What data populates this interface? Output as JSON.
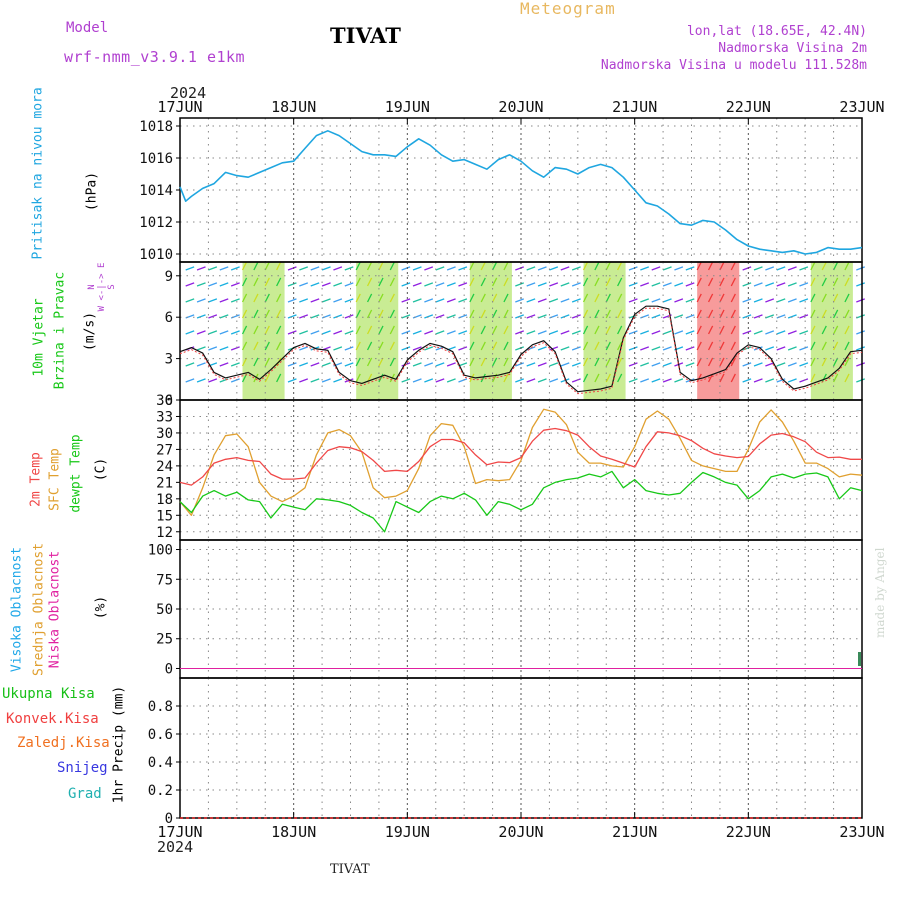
{
  "header": {
    "model_label": "Model",
    "model_name": "wrf-nmm_v3.9.1 e1km",
    "station": "TIVAT",
    "product": "Meteogram",
    "lonlat": "lon,lat (18.65E, 42.4N)",
    "elevation": "Nadmorska Visina 2m",
    "model_elevation": "Nadmorska Visina u modelu 111.528m",
    "year_top": "2024",
    "year_bottom": "2024",
    "footer_station": "TIVAT",
    "credit": "made by Angel"
  },
  "colors": {
    "pressure": "#1fa6e0",
    "temp2m": "#f04848",
    "sfc_temp": "#e0a030",
    "dewpoint": "#18c818",
    "high_cloud": "#20a8e8",
    "mid_cloud": "#e0a030",
    "low_cloud": "#e020a0",
    "rain_total": "#18c018",
    "rain_conv": "#f04040",
    "frz_rain": "#f07020",
    "snow": "#3838e0",
    "hail": "#20b0b0",
    "header_purple": "#b040d0",
    "meteogram_title": "#e8b860"
  },
  "chart_data": [
    {
      "type": "line",
      "panel": "pressure",
      "ylabel_lines": [
        "Pritisak na nivou mora",
        "(hPa)"
      ],
      "x_ticks": [
        "17JUN",
        "18JUN",
        "19JUN",
        "20JUN",
        "21JUN",
        "22JUN",
        "23JUN"
      ],
      "ylim": [
        1009.5,
        1018.5
      ],
      "yticks": [
        1010,
        1012,
        1014,
        1016,
        1018
      ],
      "grid": true,
      "series": [
        {
          "x": [
            0,
            0.05,
            0.1,
            0.2,
            0.3,
            0.4,
            0.5,
            0.6,
            0.7,
            0.8,
            0.9,
            1.0,
            1.1,
            1.2,
            1.3,
            1.4,
            1.5,
            1.6,
            1.7,
            1.8,
            1.9,
            2.0,
            2.1,
            2.2,
            2.3,
            2.4,
            2.5,
            2.6,
            2.7,
            2.8,
            2.9,
            3.0,
            3.1,
            3.2,
            3.3,
            3.4,
            3.5,
            3.6,
            3.7,
            3.8,
            3.9,
            4.0,
            4.1,
            4.2,
            4.3,
            4.4,
            4.5,
            4.6,
            4.7,
            4.8,
            4.9,
            5.0,
            5.1,
            5.2,
            5.3,
            5.4,
            5.5,
            5.6,
            5.7,
            5.8,
            5.9,
            6.0
          ],
          "values": [
            1014.2,
            1013.3,
            1013.6,
            1014.1,
            1014.4,
            1015.1,
            1014.9,
            1014.8,
            1015.1,
            1015.4,
            1015.7,
            1015.8,
            1016.6,
            1017.4,
            1017.7,
            1017.4,
            1016.9,
            1016.4,
            1016.2,
            1016.2,
            1016.1,
            1016.7,
            1017.2,
            1016.8,
            1016.2,
            1015.8,
            1015.9,
            1015.6,
            1015.3,
            1015.9,
            1016.2,
            1015.8,
            1015.2,
            1014.8,
            1015.4,
            1015.3,
            1015.0,
            1015.4,
            1015.6,
            1015.4,
            1014.8,
            1014.0,
            1013.2,
            1013.0,
            1012.5,
            1011.9,
            1011.8,
            1012.1,
            1012.0,
            1011.5,
            1010.9,
            1010.5,
            1010.3,
            1010.2,
            1010.1,
            1010.2,
            1010.0,
            1010.1,
            1010.4,
            1010.3,
            1010.3,
            1010.4
          ]
        }
      ]
    },
    {
      "type": "line",
      "panel": "wind",
      "ylabel_lines": [
        "10m Vjetar",
        "Brzina i Pravac",
        "(m/s)"
      ],
      "compass": "N\nW <-|-> E\nS",
      "ylim": [
        0,
        10
      ],
      "yticks": [
        0,
        3,
        6,
        9
      ],
      "grid": true,
      "series": [
        {
          "name": "speed",
          "x": [
            0,
            0.1,
            0.2,
            0.3,
            0.4,
            0.5,
            0.6,
            0.7,
            0.8,
            0.9,
            1.0,
            1.1,
            1.2,
            1.3,
            1.4,
            1.5,
            1.6,
            1.7,
            1.8,
            1.9,
            2.0,
            2.1,
            2.2,
            2.3,
            2.4,
            2.5,
            2.6,
            2.7,
            2.8,
            2.9,
            3.0,
            3.1,
            3.2,
            3.3,
            3.4,
            3.5,
            3.6,
            3.7,
            3.8,
            3.9,
            4.0,
            4.1,
            4.2,
            4.3,
            4.4,
            4.5,
            4.6,
            4.7,
            4.8,
            4.9,
            5.0,
            5.1,
            5.2,
            5.3,
            5.4,
            5.5,
            5.6,
            5.7,
            5.8,
            5.9,
            6.0
          ],
          "values": [
            3.5,
            3.8,
            3.4,
            2.0,
            1.6,
            1.8,
            2.0,
            1.5,
            2.2,
            3.0,
            3.8,
            4.1,
            3.7,
            3.6,
            2.0,
            1.4,
            1.2,
            1.5,
            1.8,
            1.5,
            2.9,
            3.6,
            4.1,
            3.9,
            3.5,
            1.8,
            1.6,
            1.7,
            1.8,
            2.0,
            3.3,
            4.0,
            4.3,
            3.5,
            1.3,
            0.6,
            0.7,
            0.8,
            1.0,
            4.5,
            6.2,
            6.8,
            6.8,
            6.6,
            2.0,
            1.4,
            1.6,
            1.9,
            2.2,
            3.4,
            4.0,
            3.8,
            3.0,
            1.5,
            0.8,
            1.0,
            1.3,
            1.6,
            2.3,
            3.5,
            3.6
          ]
        }
      ]
    },
    {
      "type": "line",
      "panel": "temperature",
      "ylabel_lines": [
        "2m Temp",
        "SFC Temp",
        "dewpt Temp",
        "(C)"
      ],
      "ylim": [
        10.5,
        36
      ],
      "yticks": [
        12,
        15,
        18,
        21,
        24,
        27,
        30,
        33,
        36
      ],
      "grid": true,
      "series": [
        {
          "name": "2m Temp",
          "x": [
            0,
            0.1,
            0.2,
            0.3,
            0.4,
            0.5,
            0.6,
            0.7,
            0.8,
            0.9,
            1.0,
            1.1,
            1.2,
            1.3,
            1.4,
            1.5,
            1.6,
            1.7,
            1.8,
            1.9,
            2.0,
            2.1,
            2.2,
            2.3,
            2.4,
            2.5,
            2.6,
            2.7,
            2.8,
            2.9,
            3.0,
            3.1,
            3.2,
            3.3,
            3.4,
            3.5,
            3.6,
            3.7,
            3.8,
            3.9,
            4.0,
            4.1,
            4.2,
            4.3,
            4.4,
            4.5,
            4.6,
            4.7,
            4.8,
            4.9,
            5.0,
            5.1,
            5.2,
            5.3,
            5.4,
            5.5,
            5.6,
            5.7,
            5.8,
            5.9,
            6.0
          ],
          "values": [
            21,
            20.5,
            22,
            24.5,
            25.2,
            25.5,
            25.0,
            24.8,
            22.5,
            21.6,
            21.6,
            21.8,
            24.5,
            26.8,
            27.5,
            27.3,
            26.6,
            25.0,
            23.0,
            23.2,
            23.0,
            24.8,
            27.5,
            28.8,
            28.8,
            28.2,
            26.0,
            24.2,
            24.7,
            24.6,
            25.5,
            28.5,
            30.5,
            30.8,
            30.4,
            29.6,
            27.5,
            25.8,
            25.2,
            24.5,
            23.8,
            27.5,
            30.2,
            30.0,
            29.5,
            28.6,
            27.2,
            26.2,
            25.8,
            25.5,
            25.7,
            28.0,
            29.6,
            29.9,
            29.3,
            28.4,
            26.5,
            25.5,
            25.6,
            25.2,
            25.2
          ]
        },
        {
          "name": "SFC Temp",
          "x": [
            0,
            0.1,
            0.2,
            0.3,
            0.4,
            0.5,
            0.6,
            0.7,
            0.8,
            0.9,
            1.0,
            1.1,
            1.2,
            1.3,
            1.4,
            1.5,
            1.6,
            1.7,
            1.8,
            1.9,
            2.0,
            2.1,
            2.2,
            2.3,
            2.4,
            2.5,
            2.6,
            2.7,
            2.8,
            2.9,
            3.0,
            3.1,
            3.2,
            3.3,
            3.4,
            3.5,
            3.6,
            3.7,
            3.8,
            3.9,
            4.0,
            4.1,
            4.2,
            4.3,
            4.4,
            4.5,
            4.6,
            4.7,
            4.8,
            4.9,
            5.0,
            5.1,
            5.2,
            5.3,
            5.4,
            5.5,
            5.6,
            5.7,
            5.8,
            5.9,
            6.0
          ],
          "values": [
            17.5,
            15.0,
            20,
            26,
            29.5,
            29.8,
            27.5,
            21,
            18.5,
            17.5,
            18.5,
            20,
            26,
            30,
            30.6,
            29.5,
            26.5,
            20.0,
            18.2,
            18.5,
            19.5,
            23.5,
            29.5,
            31.7,
            31.4,
            27.5,
            20.8,
            21.5,
            21.3,
            21.5,
            25.0,
            31,
            34.3,
            33.8,
            31.5,
            26.5,
            24.5,
            24.5,
            24.0,
            23.8,
            27.5,
            32.5,
            34.0,
            32.5,
            29.0,
            25.0,
            24.0,
            23.5,
            23.0,
            23.0,
            27.0,
            32.0,
            34.2,
            32.0,
            28.5,
            24.5,
            24.5,
            23.5,
            22.0,
            22.5,
            22.3
          ]
        },
        {
          "name": "dewpt Temp",
          "x": [
            0,
            0.1,
            0.2,
            0.3,
            0.4,
            0.5,
            0.6,
            0.7,
            0.8,
            0.9,
            1.0,
            1.1,
            1.2,
            1.3,
            1.4,
            1.5,
            1.6,
            1.7,
            1.8,
            1.9,
            2.0,
            2.1,
            2.2,
            2.3,
            2.4,
            2.5,
            2.6,
            2.7,
            2.8,
            2.9,
            3.0,
            3.1,
            3.2,
            3.3,
            3.4,
            3.5,
            3.6,
            3.7,
            3.8,
            3.9,
            4.0,
            4.1,
            4.2,
            4.3,
            4.4,
            4.5,
            4.6,
            4.7,
            4.8,
            4.9,
            5.0,
            5.1,
            5.2,
            5.3,
            5.4,
            5.5,
            5.6,
            5.7,
            5.8,
            5.9,
            6.0
          ],
          "values": [
            17.5,
            15.5,
            18.5,
            19.5,
            18.5,
            19.2,
            17.8,
            17.5,
            14.5,
            17.0,
            16.5,
            16.0,
            18.0,
            17.8,
            17.5,
            16.8,
            15.5,
            14.5,
            12.0,
            17.5,
            16.5,
            15.5,
            17.5,
            18.5,
            18.0,
            19.0,
            17.8,
            15.0,
            17.5,
            17.0,
            16.0,
            17.0,
            20.0,
            21.0,
            21.5,
            21.8,
            22.5,
            22.0,
            23.0,
            20.0,
            21.5,
            19.5,
            19.0,
            18.7,
            19.0,
            21.0,
            22.8,
            22.0,
            21.0,
            20.5,
            18.0,
            19.5,
            22.0,
            22.5,
            21.8,
            22.5,
            22.7,
            22.0,
            18.0,
            20.0,
            19.5
          ]
        }
      ]
    },
    {
      "type": "line",
      "panel": "cloud",
      "ylabel_lines": [
        "Visoka Oblacnost",
        "Srednja Oblacnost",
        "Niska Oblacnost",
        "(%)"
      ],
      "ylim": [
        -8,
        108
      ],
      "yticks": [
        0,
        25,
        50,
        75,
        100
      ],
      "grid": true,
      "series": [
        {
          "name": "Visoka Oblacnost",
          "x": [
            0,
            6
          ],
          "values": [
            0,
            0
          ]
        },
        {
          "name": "Srednja Oblacnost",
          "x": [
            0,
            6
          ],
          "values": [
            0,
            0
          ]
        },
        {
          "name": "Niska Oblacnost",
          "x": [
            0,
            6
          ],
          "values": [
            0,
            0
          ]
        }
      ]
    },
    {
      "type": "line",
      "panel": "precipitation",
      "ylabel_lines": [
        "Ukupna Kisa",
        "Konvek.Kisa",
        "Zaledj.Kisa",
        "Snijeg",
        "Grad",
        "1hr Precip (mm)"
      ],
      "ylim": [
        0,
        1.0
      ],
      "yticks": [
        0,
        0.2,
        0.4,
        0.6,
        0.8
      ],
      "ytick_labels": [
        "0",
        "0.2",
        "0.4",
        "0.6",
        "0.8"
      ],
      "grid": true,
      "series": [
        {
          "name": "Ukupna Kisa",
          "x": [
            0,
            6
          ],
          "values": [
            0,
            0
          ]
        }
      ]
    }
  ]
}
